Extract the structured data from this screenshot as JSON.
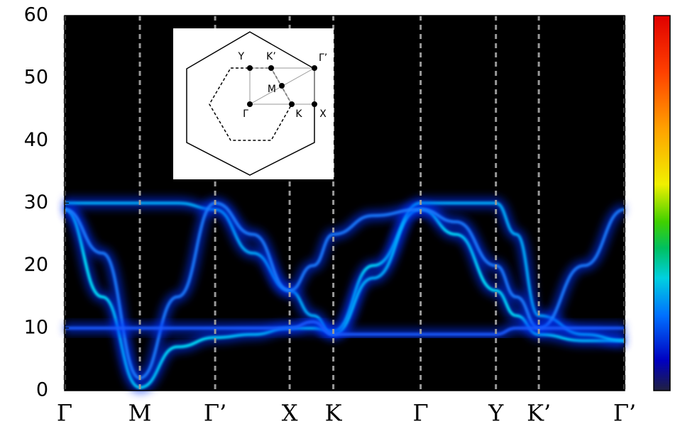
{
  "chart_data": {
    "type": "line",
    "xlim": [
      0,
      7.44
    ],
    "ylim": [
      0,
      60
    ],
    "yticks": [
      0,
      10,
      20,
      30,
      40,
      50,
      60
    ],
    "xticks": [
      {
        "value": 0,
        "label": "Γ"
      },
      {
        "value": 1,
        "label": "M"
      },
      {
        "value": 2,
        "label": "Γ’"
      },
      {
        "value": 2.99,
        "label": "X"
      },
      {
        "value": 3.57,
        "label": "K"
      },
      {
        "value": 4.73,
        "label": "Γ"
      },
      {
        "value": 5.73,
        "label": "Y"
      },
      {
        "value": 6.3,
        "label": "K’"
      },
      {
        "value": 7.44,
        "label": "Γ’"
      }
    ],
    "x": [
      0,
      0.5,
      1,
      1.5,
      2,
      2.5,
      2.99,
      3.3,
      3.57,
      4.1,
      4.73,
      5.2,
      5.73,
      6.0,
      6.3,
      6.9,
      7.44
    ],
    "series": [
      {
        "color": "#00e8ff",
        "values": [
          29,
          15,
          0.5,
          7,
          8.5,
          9,
          10,
          10,
          9.5,
          20,
          29,
          25,
          16,
          12,
          9,
          8,
          8
        ]
      },
      {
        "color": "#00b0ff",
        "values": [
          30,
          30,
          30,
          30,
          29,
          22,
          16,
          12,
          9,
          18,
          30,
          30,
          30,
          25,
          12,
          9,
          8
        ]
      },
      {
        "color": "#1a7dff",
        "values": [
          29,
          22,
          2,
          15,
          30,
          25,
          16,
          20,
          25,
          28,
          29,
          27,
          20,
          15,
          10,
          20,
          29
        ]
      },
      {
        "color": "#1a5cff",
        "values": [
          10,
          10,
          10,
          10,
          10,
          10,
          10,
          11,
          9,
          9,
          9,
          9,
          9,
          10,
          10,
          10,
          10
        ]
      }
    ],
    "inset_labels": [
      "Y",
      "K’",
      "Γ’",
      "M",
      "Γ",
      "K",
      "X"
    ]
  }
}
